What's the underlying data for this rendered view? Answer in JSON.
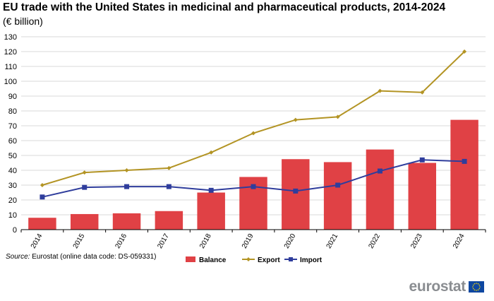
{
  "title": "EU trade with the United States in medicinal and pharmaceutical products, 2014-2024",
  "subtitle": "(€ billion)",
  "source_label": "Source:",
  "source_text": "Eurostat (online data code: DS-059331)",
  "logo_text": "eurostat",
  "colors": {
    "balance": "#e04145",
    "export": "#b39424",
    "import": "#2f3d9c",
    "grid": "#d9d9d9",
    "axis": "#000000"
  },
  "chart_data": {
    "type": "bar",
    "categories": [
      "2014",
      "2015",
      "2016",
      "2017",
      "2018",
      "2019",
      "2020",
      "2021",
      "2022",
      "2023",
      "2024"
    ],
    "ylim": [
      0,
      130
    ],
    "yticks": [
      0,
      10,
      20,
      30,
      40,
      50,
      60,
      70,
      80,
      90,
      100,
      110,
      120,
      130
    ],
    "grid": true,
    "legend_position": "bottom",
    "series": [
      {
        "name": "Balance",
        "kind": "bar",
        "values": [
          8,
          10.5,
          11,
          12.5,
          25,
          35.5,
          47.5,
          45.5,
          54,
          45,
          74
        ]
      },
      {
        "name": "Export",
        "kind": "line",
        "values": [
          30,
          38.5,
          40,
          41.5,
          52,
          65,
          74,
          76,
          93.5,
          92.5,
          120
        ]
      },
      {
        "name": "Import",
        "kind": "line",
        "values": [
          22,
          28.5,
          29,
          29,
          26.5,
          29,
          26,
          30,
          39.5,
          47,
          46
        ]
      }
    ]
  }
}
